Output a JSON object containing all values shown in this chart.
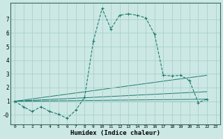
{
  "xlabel": "Humidex (Indice chaleur)",
  "background_color": "#cce8e4",
  "grid_color": "#aacfcb",
  "line_color": "#1a7a6e",
  "xlim": [
    -0.5,
    23.5
  ],
  "ylim": [
    -0.7,
    8.2
  ],
  "xticks": [
    0,
    1,
    2,
    3,
    4,
    5,
    6,
    7,
    8,
    9,
    10,
    11,
    12,
    13,
    14,
    15,
    16,
    17,
    18,
    19,
    20,
    21,
    22,
    23
  ],
  "yticks": [
    0,
    1,
    2,
    3,
    4,
    5,
    6,
    7
  ],
  "ytick_labels": [
    "-0",
    "1",
    "2",
    "3",
    "4",
    "5",
    "6",
    "7"
  ],
  "main_x": [
    0,
    1,
    2,
    3,
    4,
    5,
    6,
    7,
    8,
    9,
    10,
    11,
    12,
    13,
    14,
    15,
    16,
    17,
    18,
    19,
    20,
    21,
    22
  ],
  "main_y": [
    1.0,
    0.6,
    0.25,
    0.6,
    0.25,
    0.05,
    -0.25,
    0.35,
    1.3,
    5.4,
    7.8,
    6.3,
    7.3,
    7.4,
    7.3,
    7.1,
    5.9,
    2.9,
    2.85,
    2.9,
    2.5,
    0.9,
    1.15
  ],
  "trend_lines": [
    {
      "x": [
        0,
        22
      ],
      "y": [
        1.0,
        2.9
      ]
    },
    {
      "x": [
        0,
        22
      ],
      "y": [
        1.0,
        1.7
      ]
    },
    {
      "x": [
        0,
        22
      ],
      "y": [
        1.0,
        1.15
      ]
    },
    {
      "x": [
        0,
        22
      ],
      "y": [
        1.0,
        1.0
      ]
    }
  ]
}
